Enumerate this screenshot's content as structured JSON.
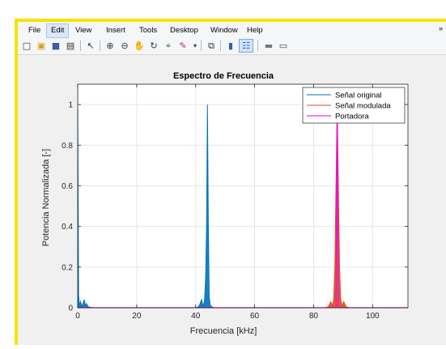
{
  "menu": {
    "items": [
      "File",
      "Edit",
      "View",
      "Insert",
      "Tools",
      "Desktop",
      "Window",
      "Help"
    ],
    "active": "Edit",
    "overflow": "»"
  },
  "toolbar": {
    "buttons": [
      {
        "icon": "new-figure-icon",
        "glyph": "□"
      },
      {
        "icon": "open-folder-icon",
        "glyph": "▣"
      },
      {
        "icon": "save-icon",
        "glyph": "■"
      },
      {
        "icon": "print-icon",
        "glyph": "▤"
      },
      {
        "icon": "pointer-icon",
        "glyph": "↖"
      },
      {
        "icon": "zoom-in-icon",
        "glyph": "⊕"
      },
      {
        "icon": "zoom-out-icon",
        "glyph": "⊖"
      },
      {
        "icon": "pan-icon",
        "glyph": "✋"
      },
      {
        "icon": "rotate-3d-icon",
        "glyph": "↻"
      },
      {
        "icon": "data-cursor-icon",
        "glyph": "⌖"
      },
      {
        "icon": "brush-icon",
        "glyph": "✎"
      },
      {
        "icon": "link-plot-icon",
        "glyph": "⧉"
      },
      {
        "icon": "colorbar-icon",
        "glyph": "▮"
      },
      {
        "icon": "legend-icon",
        "glyph": "☷"
      },
      {
        "icon": "hide-plot-tools-icon",
        "glyph": "▬"
      },
      {
        "icon": "show-plot-tools-icon",
        "glyph": "▭"
      }
    ]
  },
  "chart_data": {
    "type": "line",
    "title": "Espectro de Frecuencia",
    "xlabel": "Frecuencia [kHz]",
    "ylabel": "Potencia Normalizada [-]",
    "xlim": [
      0,
      112
    ],
    "ylim": [
      0,
      1.1
    ],
    "xticks": [
      "0",
      "20",
      "40",
      "60",
      "80",
      "100"
    ],
    "xtick_values": [
      0,
      20,
      40,
      60,
      80,
      100
    ],
    "yticks": [
      "0",
      "0.2",
      "0.4",
      "0.6",
      "0.8",
      "1"
    ],
    "ytick_values": [
      0,
      0.2,
      0.4,
      0.6,
      0.8,
      1
    ],
    "grid": true,
    "legend_position": "top-right",
    "series": [
      {
        "name": "Señal original",
        "color": "#0072BD",
        "x": [
          0,
          0.3,
          0.6,
          1.0,
          1.4,
          1.8,
          2.2,
          2.6,
          3.0,
          3.5,
          4.0,
          5,
          40,
          41,
          41.5,
          42,
          42.5,
          43,
          43.4,
          43.7,
          44.0,
          44.3,
          44.6,
          45,
          46,
          112
        ],
        "y": [
          0.98,
          0.06,
          0.01,
          0.03,
          0.005,
          0.02,
          0.04,
          0.01,
          0.02,
          0.005,
          0.003,
          0,
          0,
          0.005,
          0.02,
          0.04,
          0.01,
          0.03,
          0.15,
          0.4,
          1.0,
          0.4,
          0.05,
          0.01,
          0,
          0
        ]
      },
      {
        "name": "Señal modulada",
        "color": "#D95319",
        "x": [
          0,
          84,
          85,
          85.8,
          86.3,
          86.8,
          87.2,
          87.6,
          88.0,
          88.4,
          88.8,
          89.2,
          89.7,
          90.2,
          91,
          92,
          112
        ],
        "y": [
          0,
          0,
          0.005,
          0.03,
          0.01,
          0.04,
          0.2,
          0.6,
          1.0,
          0.6,
          0.2,
          0.04,
          0.01,
          0.03,
          0.005,
          0,
          0
        ]
      },
      {
        "name": "Portadora",
        "color": "#EE00EE",
        "x": [
          0,
          87.6,
          88.0,
          88.4,
          112
        ],
        "y": [
          0,
          0,
          1.0,
          0,
          0
        ]
      }
    ]
  }
}
